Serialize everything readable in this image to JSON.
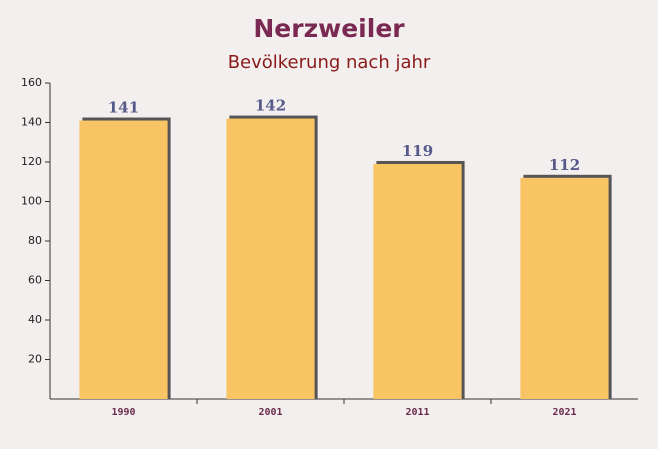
{
  "chart_data": {
    "type": "bar",
    "title": "Nerzweiler",
    "subtitle": "Bevölkerung nach jahr",
    "categories": [
      "1990",
      "2001",
      "2011",
      "2021"
    ],
    "values": [
      141,
      142,
      119,
      112
    ],
    "color": "#f9c463",
    "ylim": [
      0,
      160
    ],
    "yticks": [
      20,
      40,
      60,
      80,
      100,
      120,
      140,
      160
    ],
    "grid": false
  }
}
